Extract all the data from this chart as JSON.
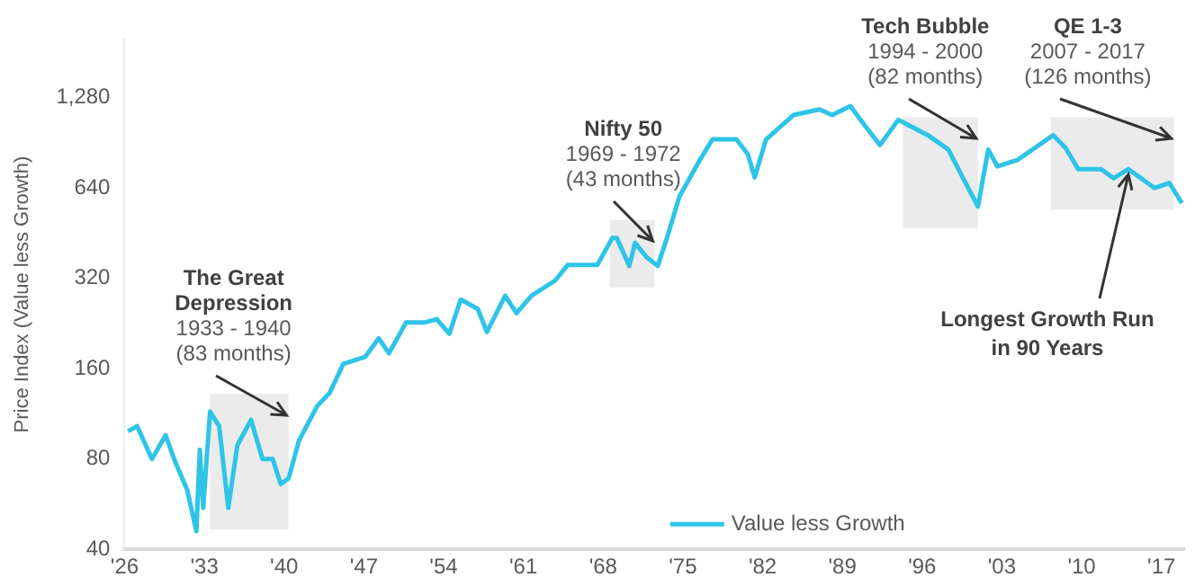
{
  "chart_data": {
    "type": "line",
    "ylabel": "Price Index (Value less Growth)",
    "log": "y",
    "grid": false,
    "legend": "bottom",
    "marker": "none",
    "line_style": "solid",
    "x": [
      1926.3,
      1927.1,
      1928.4,
      1929.6,
      1930.4,
      1931.5,
      1932.3,
      1932.6,
      1932.9,
      1933.5,
      1934.3,
      1935.1,
      1935.9,
      1937.1,
      1938.1,
      1939.0,
      1939.7,
      1940.4,
      1941.3,
      1942.9,
      1944.0,
      1945.2,
      1947.1,
      1948.3,
      1949.2,
      1950.7,
      1952.3,
      1953.4,
      1954.5,
      1955.5,
      1957.0,
      1957.8,
      1959.4,
      1960.4,
      1961.7,
      1963.8,
      1964.9,
      1967.5,
      1968.8,
      1969.2,
      1970.3,
      1970.8,
      1971.8,
      1972.8,
      1973.6,
      1974.7,
      1976.5,
      1977.6,
      1979.7,
      1980.7,
      1981.3,
      1982.3,
      1984.7,
      1987.0,
      1988.1,
      1989.7,
      1991.0,
      1992.3,
      1993.9,
      1996.5,
      1998.3,
      1999.6,
      2000.9,
      2001.8,
      2002.6,
      2004.4,
      2007.5,
      2008.6,
      2009.7,
      2011.7,
      2012.8,
      2014.1,
      2016.4,
      2017.7,
      2018.8
    ],
    "series": [
      {
        "name": "Value less Growth",
        "color": "#2ec4e8",
        "values": [
          99,
          103,
          80,
          96,
          79,
          63,
          46,
          86,
          55,
          115,
          103,
          55,
          89,
          108,
          80,
          80,
          66,
          69,
          92,
          120,
          133,
          166,
          175,
          202,
          180,
          228,
          228,
          234,
          209,
          272,
          253,
          212,
          280,
          245,
          280,
          315,
          355,
          355,
          436,
          436,
          352,
          420,
          377,
          352,
          436,
          600,
          795,
          930,
          930,
          830,
          695,
          930,
          1120,
          1170,
          1120,
          1200,
          1030,
          890,
          1080,
          960,
          860,
          690,
          555,
          860,
          755,
          795,
          960,
          870,
          740,
          740,
          690,
          740,
          640,
          665,
          570
        ]
      }
    ],
    "xlim": [
      1926,
      2019
    ],
    "xticks": [
      {
        "value": 1926,
        "label": "'26"
      },
      {
        "value": 1933,
        "label": "'33"
      },
      {
        "value": 1940,
        "label": "'40"
      },
      {
        "value": 1947,
        "label": "'47"
      },
      {
        "value": 1954,
        "label": "'54"
      },
      {
        "value": 1961,
        "label": "'61"
      },
      {
        "value": 1968,
        "label": "'68"
      },
      {
        "value": 1975,
        "label": "'75"
      },
      {
        "value": 1982,
        "label": "'82"
      },
      {
        "value": 1989,
        "label": "'89"
      },
      {
        "value": 1996,
        "label": "'96"
      },
      {
        "value": 2003,
        "label": "'03"
      },
      {
        "value": 2010,
        "label": "'10"
      },
      {
        "value": 2017,
        "label": "'17"
      }
    ],
    "ylim": [
      40,
      2000
    ],
    "yticks": [
      40,
      80,
      160,
      320,
      640,
      {
        "value": 1280,
        "label": "1,280"
      }
    ],
    "bands": [
      {
        "axis": "x",
        "from": 1933.5,
        "to": 1940.4,
        "label": "The Great Depression\n1933 - 1940\n(83 months)",
        "color": "#ebebeb"
      },
      {
        "axis": "x",
        "from": 1968.6,
        "to": 1972.5,
        "label": "Nifty 50\n1969 - 1972\n(43 months)",
        "color": "#ebebeb"
      },
      {
        "axis": "x",
        "from": 1994.3,
        "to": 2000.9,
        "label": "Tech Bubble\n1994 - 2000\n(82 months)",
        "color": "#ebebeb"
      },
      {
        "axis": "x",
        "from": 2007.3,
        "to": 2018.1,
        "label": "QE 1-3\n2007 - 2017\n(126 months)",
        "color": "#ebebeb"
      }
    ],
    "annotations": [
      {
        "text": "Longest Growth Run\nin 90 Years",
        "x": 2014.1,
        "y": 740
      }
    ]
  }
}
